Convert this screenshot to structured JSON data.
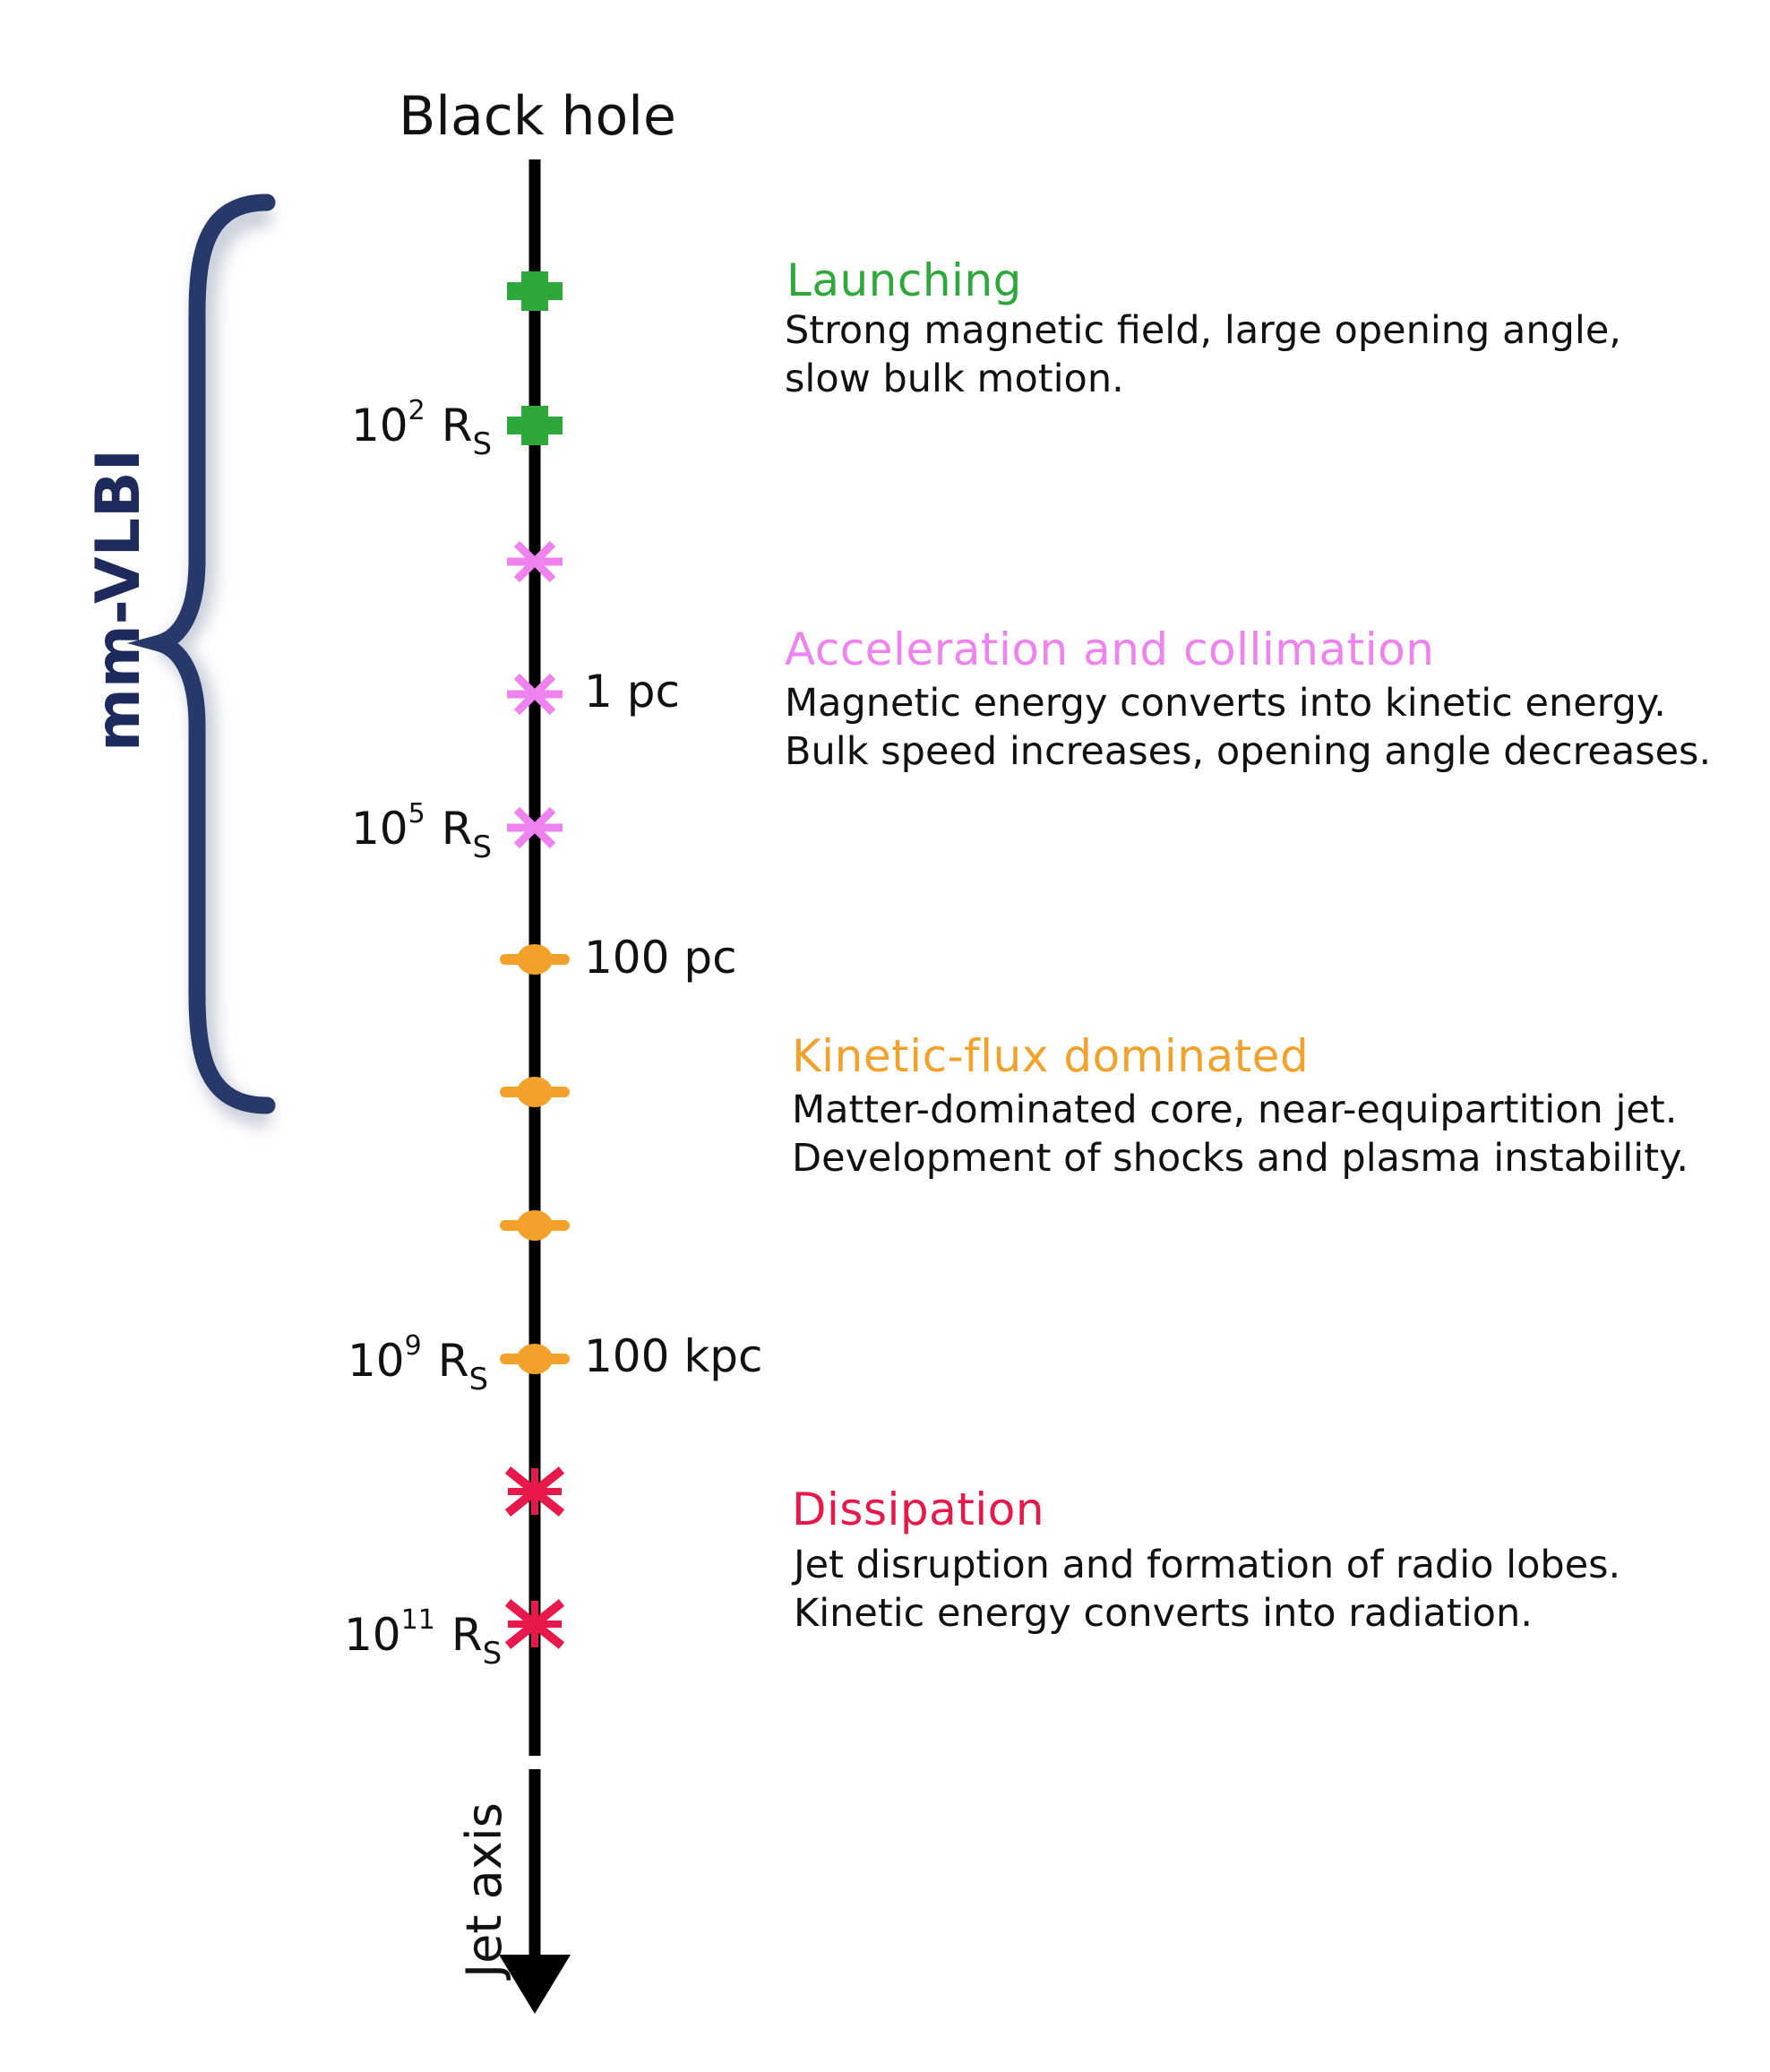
{
  "top_label": "Black hole",
  "axis_label": "Jet axis",
  "bracket_label": "mm-VLBI",
  "colors": {
    "launching": "#2ea83a",
    "acceleration": "#ee82ee",
    "kinetic": "#f2a22b",
    "dissipation": "#e8184a",
    "bracket": "#27396b",
    "axis": "#000000"
  },
  "scales": [
    {
      "base": "10",
      "exp": "2",
      "unit": "R",
      "sub": "S"
    },
    {
      "base": "10",
      "exp": "5",
      "unit": "R",
      "sub": "S"
    },
    {
      "base": "10",
      "exp": "9",
      "unit": "R",
      "sub": "S"
    },
    {
      "base": "10",
      "exp": "11",
      "unit": "R",
      "sub": "S"
    }
  ],
  "distances": [
    "1 pc",
    "100 pc",
    "100 kpc"
  ],
  "phases": [
    {
      "title": "Launching",
      "lines": [
        "Strong magnetic field, large opening angle,",
        "slow bulk motion."
      ]
    },
    {
      "title": "Acceleration and collimation",
      "lines": [
        "Magnetic energy converts into kinetic energy.",
        "Bulk speed increases, opening angle decreases."
      ]
    },
    {
      "title": "Kinetic-flux dominated",
      "lines": [
        "Matter-dominated core, near-equipartition jet.",
        "Development of shocks and plasma instability."
      ]
    },
    {
      "title": "Dissipation",
      "lines": [
        "Jet disruption and formation of radio lobes.",
        "Kinetic energy converts into radiation."
      ]
    }
  ]
}
